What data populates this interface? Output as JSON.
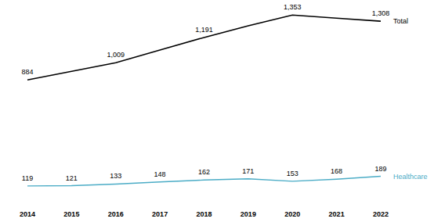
{
  "chart_data": {
    "type": "line",
    "categories": [
      "2014",
      "2015",
      "2016",
      "2017",
      "2018",
      "2019",
      "2020",
      "2021",
      "2022"
    ],
    "series": [
      {
        "name": "Total",
        "color": "#000000",
        "values": [
          884,
          946,
          1009,
          1100,
          1191,
          1275,
          1353,
          1330,
          1308
        ],
        "value_labels": [
          "884",
          null,
          "1,009",
          null,
          "1,191",
          null,
          "1,353",
          null,
          "1,308"
        ]
      },
      {
        "name": "Healthcare",
        "color": "#4bacc6",
        "values": [
          119,
          121,
          133,
          148,
          162,
          171,
          153,
          168,
          189
        ]
      }
    ],
    "ylim": [
      0,
      1450
    ],
    "data_labels": true,
    "tick_labels": "x"
  }
}
